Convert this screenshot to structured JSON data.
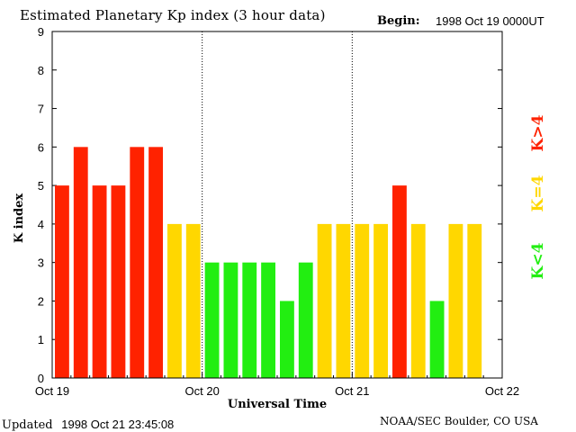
{
  "header": {
    "title": "Estimated Planetary Kp index (3 hour data)",
    "begin_label": "Begin:",
    "begin_value": "1998 Oct 19 0000UT"
  },
  "footer": {
    "updated_label": "Updated",
    "updated_value": "1998 Oct 21 23:45:08",
    "source": "NOAA/SEC Boulder, CO USA"
  },
  "chart_data": {
    "type": "bar",
    "title": "Estimated Planetary Kp index (3 hour data)",
    "xlabel": "Universal Time",
    "ylabel": "K index",
    "ylim": [
      0,
      9
    ],
    "yticks": [
      0,
      1,
      2,
      3,
      4,
      5,
      6,
      7,
      8,
      9
    ],
    "slots_per_day": 8,
    "days": 3,
    "xtick_labels": [
      "Oct 19",
      "Oct 20",
      "Oct 21",
      "Oct 22"
    ],
    "day_separators": [
      1,
      2
    ],
    "values": [
      5,
      6,
      5,
      5,
      6,
      6,
      4,
      4,
      3,
      3,
      3,
      3,
      2,
      3,
      4,
      4,
      4,
      4,
      5,
      4,
      2,
      4,
      4
    ],
    "colors": {
      "low": "#22ee11",
      "mid": "#ffd700",
      "high": "#ff2200"
    },
    "legend": [
      {
        "label": "K<4",
        "color": "#22ee11"
      },
      {
        "label": "K=4",
        "color": "#ffd700"
      },
      {
        "label": "K>4",
        "color": "#ff2200"
      }
    ]
  }
}
